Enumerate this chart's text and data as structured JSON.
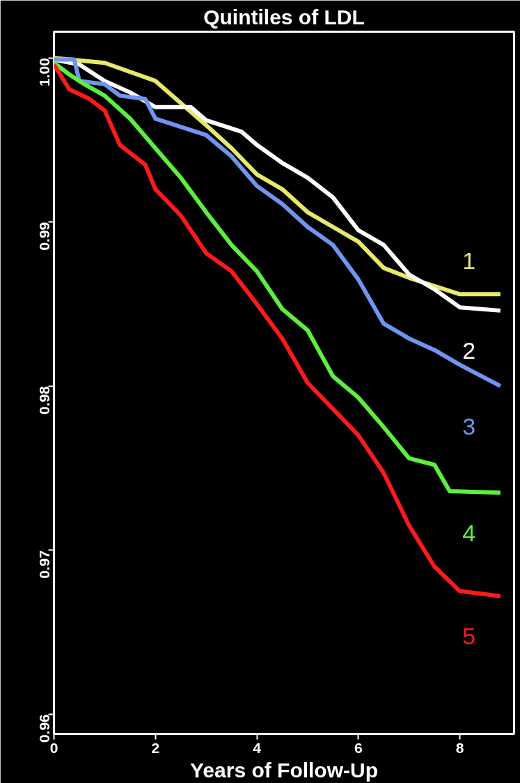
{
  "chart_data": {
    "type": "line",
    "title": "Quintiles of LDL",
    "xlabel": "Years of Follow-Up",
    "xlim": [
      0,
      9.07
    ],
    "ylim": [
      0.9588,
      1.0016
    ],
    "xticks": [
      0,
      2,
      4,
      6,
      8
    ],
    "yticks": [
      0.96,
      0.97,
      0.98,
      0.99,
      {
        "value": 1.0,
        "label": "1.00"
      }
    ],
    "grid": false,
    "marker": "none",
    "line_style": "solid",
    "series": [
      {
        "name": "1",
        "color": "#e8e86a",
        "x": [
          0,
          1,
          2,
          3,
          3.5,
          4,
          4.5,
          5,
          5.5,
          6,
          6.5,
          7,
          7.5,
          8,
          8.8
        ],
        "values": [
          1.0,
          0.9997,
          0.9986,
          0.9959,
          0.9945,
          0.9929,
          0.992,
          0.9906,
          0.9897,
          0.9888,
          0.9872,
          0.9866,
          0.9861,
          0.9856,
          0.9856
        ]
      },
      {
        "name": "2",
        "color": "#ffffff",
        "x": [
          0,
          0.5,
          1,
          1.5,
          2,
          2.7,
          3,
          3.7,
          4,
          4.5,
          5,
          5.5,
          6,
          6.5,
          7,
          7.5,
          8,
          8.8
        ],
        "values": [
          0.9999,
          0.9996,
          0.9986,
          0.9979,
          0.997,
          0.997,
          0.9962,
          0.9955,
          0.9947,
          0.9936,
          0.9927,
          0.9915,
          0.9895,
          0.9886,
          0.9868,
          0.9859,
          0.9848,
          0.9846
        ]
      },
      {
        "name": "3",
        "color": "#6f95f0",
        "x": [
          0,
          0.4,
          0.5,
          1,
          1.3,
          1.8,
          2,
          2.5,
          3,
          3.5,
          4,
          4.5,
          5,
          5.5,
          6,
          6.5,
          7,
          7.5,
          8,
          8.8
        ],
        "values": [
          0.9999,
          0.9999,
          0.9986,
          0.9984,
          0.9977,
          0.9975,
          0.9963,
          0.9958,
          0.9953,
          0.994,
          0.9922,
          0.9911,
          0.9897,
          0.9886,
          0.9865,
          0.9838,
          0.9829,
          0.9822,
          0.9813,
          0.98
        ]
      },
      {
        "name": "4",
        "color": "#5cf03c",
        "x": [
          0,
          0.3,
          0.6,
          1,
          1.5,
          2,
          2.5,
          3,
          3.5,
          4,
          4.5,
          5,
          5.5,
          6,
          6.5,
          7,
          7.5,
          7.8,
          8.8
        ],
        "values": [
          0.9997,
          0.999,
          0.9984,
          0.9977,
          0.9963,
          0.9945,
          0.9927,
          0.9906,
          0.9886,
          0.987,
          0.9847,
          0.9834,
          0.9806,
          0.9793,
          0.9775,
          0.9756,
          0.9752,
          0.9736,
          0.9735
        ]
      },
      {
        "name": "5",
        "color": "#ff1a1a",
        "x": [
          0,
          0.3,
          0.7,
          1,
          1.3,
          1.8,
          2,
          2.5,
          3,
          3.5,
          4,
          4.5,
          5,
          5.5,
          6,
          6.5,
          7,
          7.5,
          8,
          8.8
        ],
        "values": [
          0.9996,
          0.9981,
          0.9975,
          0.9968,
          0.9947,
          0.9935,
          0.992,
          0.9904,
          0.9881,
          0.987,
          0.985,
          0.9829,
          0.9802,
          0.9786,
          0.977,
          0.9747,
          0.9715,
          0.969,
          0.9675,
          0.9672
        ]
      }
    ]
  }
}
